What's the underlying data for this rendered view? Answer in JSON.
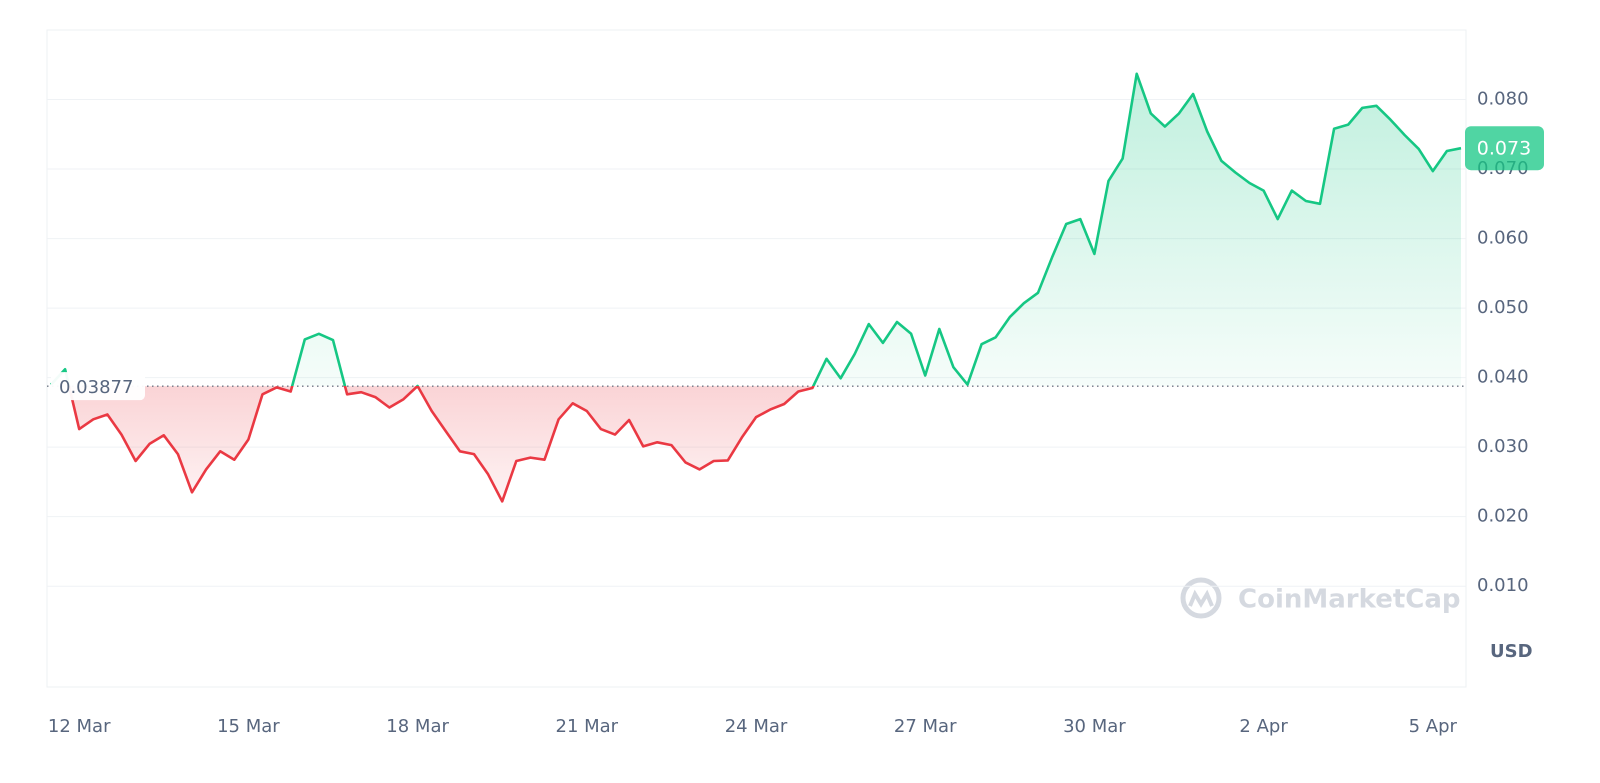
{
  "chart_data": {
    "type": "line",
    "categories": [
      null,
      null,
      "12 Mar",
      null,
      null,
      null,
      null,
      null,
      null,
      null,
      null,
      null,
      null,
      null,
      "15 Mar",
      null,
      null,
      null,
      null,
      null,
      null,
      null,
      null,
      null,
      null,
      null,
      "18 Mar",
      null,
      null,
      null,
      null,
      null,
      null,
      null,
      null,
      null,
      null,
      null,
      "21 Mar",
      null,
      null,
      null,
      null,
      null,
      null,
      null,
      null,
      null,
      null,
      null,
      "24 Mar",
      null,
      null,
      null,
      null,
      null,
      null,
      null,
      null,
      null,
      null,
      null,
      "27 Mar",
      null,
      null,
      null,
      null,
      null,
      null,
      null,
      null,
      null,
      null,
      null,
      "30 Mar",
      null,
      null,
      null,
      null,
      null,
      null,
      null,
      null,
      null,
      null,
      null,
      "2 Apr",
      null,
      null,
      null,
      null,
      null,
      null,
      null,
      null,
      null,
      null,
      null,
      "5 Apr",
      null,
      null
    ],
    "values": [
      0.039,
      0.0412,
      0.0326,
      0.034,
      0.0347,
      0.0318,
      0.028,
      0.0305,
      0.0317,
      0.029,
      0.0235,
      0.0268,
      0.0294,
      0.0282,
      0.0311,
      0.0376,
      0.0386,
      0.038,
      0.0455,
      0.0463,
      0.0454,
      0.0376,
      0.0379,
      0.0372,
      0.0357,
      0.0369,
      0.0388,
      0.0352,
      0.0323,
      0.0294,
      0.029,
      0.0261,
      0.0222,
      0.028,
      0.0285,
      0.0282,
      0.034,
      0.0363,
      0.0352,
      0.0326,
      0.0318,
      0.0339,
      0.0301,
      0.0307,
      0.0303,
      0.0278,
      0.0268,
      0.028,
      0.0281,
      0.0314,
      0.0343,
      0.0354,
      0.0362,
      0.038,
      0.0385,
      0.0427,
      0.0399,
      0.0434,
      0.0477,
      0.045,
      0.048,
      0.0463,
      0.0403,
      0.047,
      0.0415,
      0.039,
      0.0448,
      0.0458,
      0.0487,
      0.0507,
      0.0522,
      0.0573,
      0.0621,
      0.0628,
      0.0578,
      0.0683,
      0.0715,
      0.0837,
      0.078,
      0.0761,
      0.078,
      0.0808,
      0.0754,
      0.0712,
      0.0695,
      0.068,
      0.0669,
      0.0628,
      0.0669,
      0.0654,
      0.065,
      0.0758,
      0.0764,
      0.0788,
      0.0791,
      0.0771,
      0.0749,
      0.0729,
      0.0697,
      0.0726,
      0.073
    ],
    "baseline": 0.03877,
    "up_color": "#16c784",
    "down_color": "#ea3943",
    "ylim": [
      -0.0045,
      0.09
    ],
    "yticks": [
      {
        "value": 0.01,
        "label": "0.010"
      },
      {
        "value": 0.02,
        "label": "0.020"
      },
      {
        "value": 0.03,
        "label": "0.030"
      },
      {
        "value": 0.04,
        "label": "0.040"
      },
      {
        "value": 0.05,
        "label": "0.050"
      },
      {
        "value": 0.06,
        "label": "0.060"
      },
      {
        "value": 0.07,
        "label": "0.070"
      },
      {
        "value": 0.08,
        "label": "0.080"
      }
    ],
    "grid": true,
    "y_unit": "USD",
    "watermark": "CoinMarketCap"
  }
}
